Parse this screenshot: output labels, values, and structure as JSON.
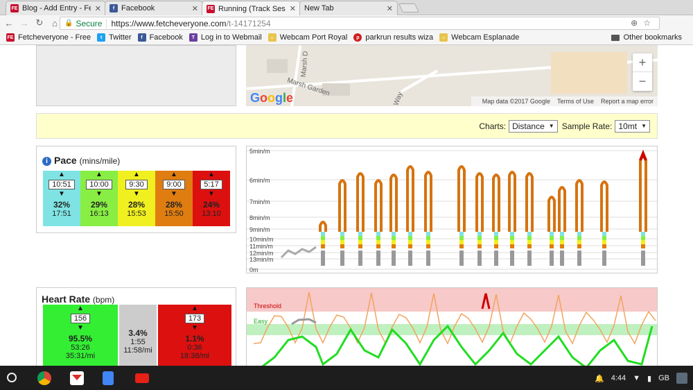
{
  "browser": {
    "tabs": [
      {
        "title": "Blog - Add Entry - Fetche",
        "icon": "fetch-icon",
        "active": false
      },
      {
        "title": "Facebook",
        "icon": "facebook-icon",
        "active": false
      },
      {
        "title": "Running (Track Session)",
        "icon": "fetch-icon",
        "active": true
      },
      {
        "title": "New Tab",
        "icon": "",
        "active": false
      }
    ],
    "secure_label": "Secure",
    "url_scheme_host": "https://www.fetcheveryone.com",
    "url_path": "/t-14171254",
    "bookmarks": [
      {
        "label": "Fetcheveryone - Free",
        "icon": "fetch-icon"
      },
      {
        "label": "Twitter",
        "icon": "twitter-icon"
      },
      {
        "label": "Facebook",
        "icon": "facebook-icon"
      },
      {
        "label": "Log in to Webmail",
        "icon": "webmail-icon"
      },
      {
        "label": "Webcam Port Royal",
        "icon": "webcam-icon"
      },
      {
        "label": "parkrun results wiza",
        "icon": "parkrun-icon"
      },
      {
        "label": "Webcam Esplanade",
        "icon": "webcam-icon"
      }
    ],
    "other_bookmarks": "Other bookmarks"
  },
  "map": {
    "street_1": "Marsh D",
    "street_2": "Marsh Garden",
    "street_3": "Way",
    "logo": "Google",
    "attribution": "Map data ©2017 Google",
    "terms": "Terms of Use",
    "report": "Report a map error",
    "zoom_in": "+",
    "zoom_out": "−"
  },
  "controls": {
    "charts_label": "Charts:",
    "charts_value": "Distance",
    "sample_label": "Sample Rate:",
    "sample_value": "10mt"
  },
  "pace": {
    "title": "Pace",
    "unit": "(mins/mile)",
    "zones": [
      {
        "value": "10:51",
        "pct": "32%",
        "time": "17:51",
        "color": "#7fe3e3"
      },
      {
        "value": "10:00",
        "pct": "29%",
        "time": "16:13",
        "color": "#88ee44"
      },
      {
        "value": "9:30",
        "pct": "28%",
        "time": "15:53",
        "color": "#f0f020"
      },
      {
        "value": "9:00",
        "pct": "28%",
        "time": "15:50",
        "color": "#e07d10"
      },
      {
        "value": "5:17",
        "pct": "24%",
        "time": "13:10",
        "color": "#dd1010"
      }
    ]
  },
  "pace_chart_labels": [
    "5min/m",
    "6min/m",
    "7min/m",
    "8min/m",
    "9min/m",
    "10min/m",
    "11min/m",
    "12min/m",
    "13min/m",
    "0m"
  ],
  "heart_rate": {
    "title": "Heart Rate",
    "unit": "(bpm)",
    "zones": [
      {
        "value": "156",
        "pct": "95.5%",
        "time": "53:26",
        "extra": "35:31/mi",
        "color": "#33ee33"
      },
      {
        "value": "",
        "pct": "3.4%",
        "time": "1:55",
        "extra": "11:58/mi",
        "color": "#cccccc"
      },
      {
        "value": "173",
        "pct": "1.1%",
        "time": "0:36",
        "extra": "18:38/mi",
        "color": "#dd1010"
      }
    ]
  },
  "hr_chart_labels": {
    "threshold": "Threshold",
    "easy": "Easy"
  },
  "taskbar": {
    "time": "4:44",
    "locale": "GB"
  }
}
